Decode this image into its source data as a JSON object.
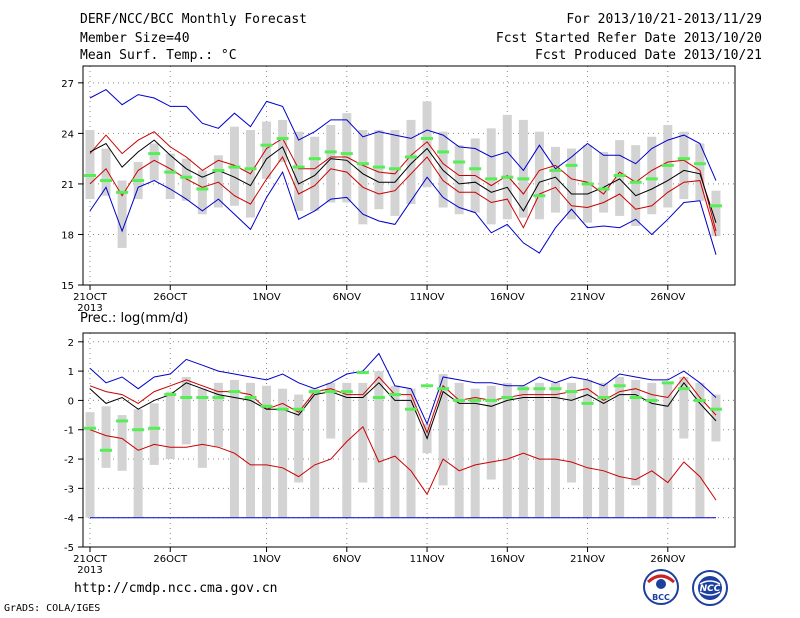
{
  "header": {
    "title": "DERF/NCC/BCC Monthly Forecast",
    "member_size": "Member Size=40",
    "variable": "Mean Surf. Temp.: °C",
    "period": "For 2013/10/21-2013/11/29",
    "started": "Fcst Started Refer Date 2013/10/20",
    "produced": "Fcst Produced Date 2013/10/21"
  },
  "footer": {
    "url": "http://cmdp.ncc.cma.gov.cn",
    "credit": "GrADS: COLA/IGES",
    "logo_bcc": "BCC",
    "logo_ncc": "NCC"
  },
  "colors": {
    "max": "#0000cc",
    "quant": "#cc0000",
    "mean": "#000000",
    "box": "#d3d3d3",
    "member": "#55ee55"
  },
  "chart_data": [
    {
      "type": "line",
      "label": "Mean Surf. Temp.: °C",
      "ylim": [
        15,
        28
      ],
      "yticks": [
        15,
        18,
        21,
        24,
        27
      ],
      "xticks": [
        {
          "day": 0,
          "label": "21OCT"
        },
        {
          "day": 5,
          "label": "26OCT"
        },
        {
          "day": 11,
          "label": "1NOV"
        },
        {
          "day": 16,
          "label": "6NOV"
        },
        {
          "day": 21,
          "label": "11NOV"
        },
        {
          "day": 26,
          "label": "16NOV"
        },
        {
          "day": 31,
          "label": "21NOV"
        },
        {
          "day": 36,
          "label": "26NOV"
        }
      ],
      "year_label": "2013",
      "x_count": 40,
      "max": [
        26.1,
        26.6,
        25.7,
        26.3,
        26.1,
        25.6,
        25.6,
        24.6,
        24.3,
        25.2,
        24.4,
        25.9,
        25.6,
        23.6,
        24.1,
        24.8,
        24.8,
        23.8,
        24.1,
        23.9,
        23.7,
        24.2,
        23.9,
        23.2,
        23.1,
        22.6,
        22.9,
        21.8,
        23.3,
        21.9,
        22.6,
        23.4,
        22.7,
        22.7,
        22.2,
        23.1,
        23.6,
        23.9,
        23.4,
        21.2
      ],
      "q_high": [
        22.8,
        23.9,
        22.8,
        23.6,
        24.1,
        23.2,
        22.6,
        21.8,
        22.4,
        22.1,
        21.6,
        23.1,
        23.7,
        21.9,
        21.9,
        22.6,
        22.6,
        22.1,
        21.7,
        21.6,
        22.7,
        23.5,
        22.2,
        21.5,
        21.5,
        20.9,
        21.5,
        20.4,
        21.8,
        22.1,
        21.3,
        21.1,
        20.4,
        21.7,
        21.1,
        21.8,
        22.3,
        22.4,
        21.8,
        18.2
      ],
      "mean": [
        22.9,
        23.4,
        22.0,
        22.9,
        23.6,
        22.7,
        21.9,
        21.4,
        21.8,
        21.4,
        20.9,
        22.5,
        23.2,
        21.0,
        21.5,
        22.5,
        22.4,
        21.6,
        21.1,
        21.1,
        22.2,
        23.1,
        21.8,
        21.0,
        21.1,
        20.5,
        20.8,
        19.4,
        21.1,
        21.4,
        20.4,
        20.4,
        20.8,
        21.3,
        20.3,
        20.7,
        21.2,
        21.8,
        21.6,
        18.7
      ],
      "q_low": [
        21.0,
        21.9,
        20.3,
        21.8,
        22.4,
        21.9,
        21.3,
        20.8,
        21.1,
        20.3,
        19.8,
        21.3,
        22.6,
        20.4,
        20.9,
        21.9,
        21.7,
        20.8,
        20.4,
        20.6,
        21.6,
        22.6,
        21.2,
        20.5,
        20.5,
        19.9,
        20.1,
        18.4,
        20.4,
        20.8,
        19.7,
        19.6,
        19.9,
        20.4,
        19.5,
        19.7,
        20.5,
        21.1,
        21.2,
        17.9
      ],
      "min": [
        19.4,
        20.8,
        18.2,
        20.8,
        21.2,
        20.7,
        20.1,
        19.4,
        20.1,
        19.2,
        18.3,
        20.2,
        21.7,
        18.9,
        19.4,
        20.1,
        20.2,
        19.2,
        18.8,
        18.6,
        20.0,
        21.4,
        20.2,
        19.6,
        19.3,
        18.1,
        18.6,
        17.5,
        16.9,
        18.4,
        19.5,
        18.4,
        18.5,
        18.4,
        18.9,
        18.0,
        18.9,
        19.9,
        20.0,
        16.8
      ],
      "box_high": [
        24.2,
        23.1,
        21.2,
        22.3,
        23.4,
        22.8,
        22.5,
        21.8,
        22.7,
        24.4,
        24.2,
        24.7,
        24.8,
        24.1,
        23.8,
        24.5,
        25.2,
        24.2,
        24.2,
        24.2,
        24.8,
        25.9,
        24.1,
        23.3,
        23.7,
        24.3,
        25.1,
        24.8,
        24.1,
        23.2,
        23.1,
        23.3,
        22.9,
        23.6,
        23.3,
        23.8,
        24.5,
        24.1,
        23.4,
        20.6
      ],
      "box_low": [
        20.1,
        20.3,
        17.2,
        20.1,
        21.2,
        20.1,
        20.0,
        19.2,
        19.6,
        19.7,
        19.0,
        21.3,
        22.3,
        19.4,
        19.4,
        19.9,
        19.9,
        18.6,
        19.5,
        19.1,
        19.8,
        20.8,
        19.6,
        19.2,
        19.3,
        18.6,
        18.9,
        19.0,
        18.9,
        19.3,
        18.9,
        18.7,
        19.3,
        19.1,
        18.5,
        19.2,
        19.6,
        20.1,
        20.0,
        17.9
      ],
      "members": [
        21.5,
        21.2,
        20.5,
        21.2,
        22.8,
        21.7,
        21.4,
        20.7,
        21.8,
        22.0,
        21.9,
        23.3,
        23.7,
        22.0,
        22.5,
        22.9,
        22.8,
        22.2,
        22.0,
        21.9,
        22.6,
        23.7,
        22.9,
        22.3,
        21.9,
        21.3,
        21.4,
        21.3,
        20.3,
        21.8,
        22.1,
        21.0,
        20.7,
        21.5,
        21.1,
        21.3,
        22.1,
        22.5,
        22.2,
        19.7
      ]
    },
    {
      "type": "line",
      "label": "Prec.: log(mm/d)",
      "ylim": [
        -5,
        2.3
      ],
      "yticks": [
        -5,
        -4,
        -3,
        -2,
        -1,
        0,
        1,
        2
      ],
      "xticks": [
        {
          "day": 0,
          "label": "21OCT"
        },
        {
          "day": 5,
          "label": "26OCT"
        },
        {
          "day": 11,
          "label": "1NOV"
        },
        {
          "day": 16,
          "label": "6NOV"
        },
        {
          "day": 21,
          "label": "11NOV"
        },
        {
          "day": 26,
          "label": "16NOV"
        },
        {
          "day": 31,
          "label": "21NOV"
        },
        {
          "day": 36,
          "label": "26NOV"
        }
      ],
      "year_label": "2013",
      "x_count": 40,
      "max": [
        1.1,
        0.6,
        0.8,
        0.4,
        0.8,
        0.9,
        1.4,
        1.2,
        1.0,
        0.9,
        0.8,
        0.7,
        0.9,
        0.6,
        0.4,
        0.6,
        0.9,
        1.0,
        1.6,
        0.5,
        0.4,
        -0.8,
        0.8,
        0.7,
        0.6,
        0.6,
        0.5,
        0.5,
        0.8,
        0.6,
        0.8,
        0.7,
        0.5,
        0.9,
        0.8,
        0.7,
        0.7,
        1.0,
        0.6,
        0.1
      ],
      "q_high": [
        0.5,
        0.3,
        0.2,
        -0.1,
        0.3,
        0.5,
        0.7,
        0.5,
        0.3,
        0.3,
        0.2,
        -0.3,
        -0.1,
        -0.4,
        0.3,
        0.4,
        0.2,
        0.2,
        0.8,
        0.2,
        0.2,
        -1.1,
        0.5,
        0.0,
        0.1,
        0.0,
        0.1,
        0.2,
        0.2,
        0.2,
        0.3,
        0.4,
        0.0,
        0.3,
        0.4,
        0.2,
        0.1,
        0.8,
        0.1,
        -0.5
      ],
      "mean": [
        0.4,
        -0.1,
        0.1,
        -0.3,
        0.0,
        0.2,
        0.6,
        0.4,
        0.2,
        0.1,
        0.0,
        -0.3,
        -0.3,
        -0.5,
        0.2,
        0.3,
        0.1,
        0.1,
        0.6,
        0.0,
        0.0,
        -1.3,
        0.3,
        -0.1,
        -0.1,
        -0.2,
        0.0,
        0.1,
        0.1,
        0.1,
        0.0,
        0.2,
        -0.1,
        0.2,
        0.2,
        -0.1,
        -0.2,
        0.6,
        -0.1,
        -0.7
      ],
      "q_low": [
        -1.0,
        -1.2,
        -1.3,
        -1.7,
        -1.5,
        -1.6,
        -1.6,
        -1.5,
        -1.6,
        -1.8,
        -2.2,
        -2.2,
        -2.3,
        -2.6,
        -2.2,
        -2.0,
        -1.4,
        -0.9,
        -2.1,
        -1.9,
        -2.4,
        -3.2,
        -2.0,
        -2.4,
        -2.2,
        -2.1,
        -2.0,
        -1.8,
        -2.0,
        -2.0,
        -2.1,
        -2.3,
        -2.4,
        -2.6,
        -2.7,
        -2.4,
        -2.8,
        -2.1,
        -2.6,
        -3.4
      ],
      "min": [
        -4,
        -4,
        -4,
        -4,
        -4,
        -4,
        -4,
        -4,
        -4,
        -4,
        -4,
        -4,
        -4,
        -4,
        -4,
        -4,
        -4,
        -4,
        -4,
        -4,
        -4,
        -4,
        -4,
        -4,
        -4,
        -4,
        -4,
        -4,
        -4,
        -4,
        -4,
        -4,
        -4,
        -4,
        -4,
        -4,
        -4,
        -4,
        -4,
        -4
      ],
      "box_high": [
        -0.4,
        -0.2,
        -0.5,
        -0.3,
        -0.1,
        0.3,
        0.8,
        0.4,
        0.6,
        0.7,
        0.6,
        0.5,
        0.4,
        0.2,
        0.4,
        0.6,
        0.6,
        0.6,
        1.0,
        0.5,
        0.4,
        -0.8,
        0.9,
        0.6,
        0.4,
        0.5,
        0.6,
        0.5,
        0.6,
        0.6,
        0.6,
        0.7,
        0.6,
        0.8,
        0.7,
        0.6,
        0.6,
        0.8,
        0.6,
        0.2
      ],
      "box_low": [
        -4.0,
        -2.3,
        -2.4,
        -4.0,
        -2.2,
        -2.0,
        -1.5,
        -2.3,
        -1.6,
        -4.0,
        -4.0,
        -4.0,
        -4.0,
        -2.8,
        -4.0,
        -1.3,
        -4.0,
        -2.8,
        -4.0,
        -4.0,
        -4.0,
        -1.8,
        -2.9,
        -4.0,
        -4.0,
        -2.7,
        -4.0,
        -4.0,
        -4.0,
        -4.0,
        -2.8,
        -4.0,
        -4.0,
        -4.0,
        -2.9,
        -4.0,
        -4.0,
        -1.3,
        -4.0,
        -1.4
      ],
      "members": [
        -0.95,
        -1.7,
        -0.7,
        -1.0,
        -0.95,
        0.2,
        0.1,
        0.1,
        0.1,
        0.3,
        0.1,
        -0.2,
        -0.3,
        -0.3,
        0.3,
        0.3,
        0.3,
        0.95,
        0.1,
        0.2,
        -0.3,
        0.5,
        0.4,
        0.0,
        0.0,
        0.0,
        0.1,
        0.4,
        0.4,
        0.4,
        0.3,
        -0.1,
        0.1,
        0.5,
        0.1,
        0.0,
        0.6,
        0.4,
        0.0,
        -0.3
      ]
    }
  ]
}
